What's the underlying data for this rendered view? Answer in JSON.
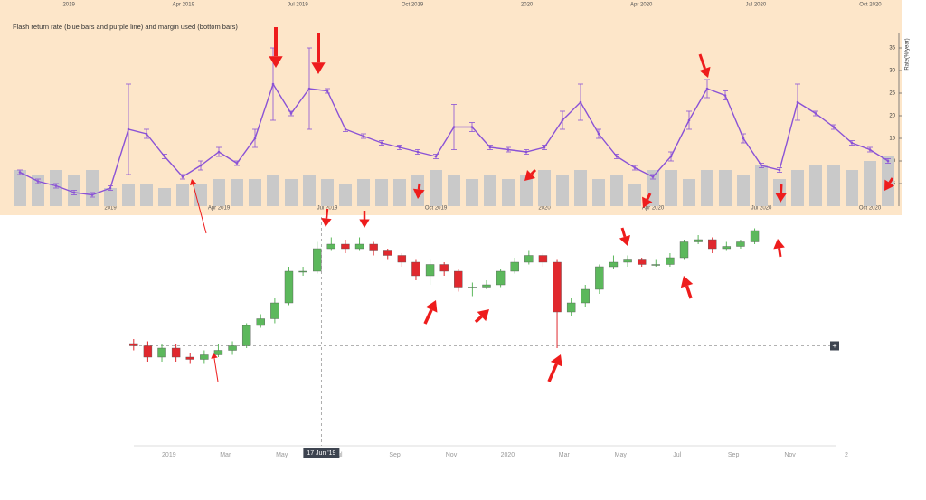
{
  "chart_data": [
    {
      "type": "bar-line",
      "title": "Flash return rate (blue bars and purple line) and margin used (bottom bars)",
      "y_label": "Rate(%/year)",
      "x": [
        -2.5,
        -2,
        -1.5,
        -1,
        -0.5,
        0,
        0.5,
        1,
        1.5,
        2,
        2.5,
        3,
        3.5,
        4,
        4.5,
        5,
        5.5,
        6,
        6.5,
        7,
        7.5,
        8,
        8.5,
        9,
        9.5,
        10,
        10.5,
        11,
        11.5,
        12,
        12.5,
        13,
        13.5,
        14,
        14.5,
        15,
        15.5,
        16,
        16.5,
        17,
        17.5,
        18,
        18.5,
        19,
        19.5,
        20,
        20.5,
        21,
        21.5
      ],
      "bars": {
        "color": "#c9c9c9",
        "values": [
          8,
          7,
          8,
          7,
          8,
          4,
          5,
          5,
          4,
          5,
          5,
          6,
          6,
          6,
          7,
          6,
          7,
          6,
          5,
          6,
          6,
          6,
          7,
          8,
          7,
          6,
          7,
          6,
          7,
          8,
          7,
          8,
          6,
          7,
          5,
          8,
          8,
          6,
          8,
          8,
          7,
          9,
          6,
          8,
          9,
          9,
          8,
          10,
          11
        ]
      },
      "line": {
        "color": "#8a52d6",
        "values": [
          7.5,
          5.5,
          4.5,
          3,
          2.5,
          4,
          17,
          16,
          11,
          6.5,
          9,
          12,
          9.5,
          15,
          27,
          20.5,
          26,
          25.5,
          17,
          15.5,
          14,
          13,
          12,
          11,
          17.5,
          17.5,
          13,
          12.5,
          12,
          13,
          19,
          23,
          16,
          11,
          8.5,
          6.5,
          11,
          19,
          26,
          24.5,
          15,
          9,
          8,
          23,
          20.5,
          17.5,
          14,
          12.5,
          10
        ],
        "errors": [
          0.5,
          0.5,
          0.5,
          0.5,
          0.5,
          0.5,
          10,
          1,
          0.5,
          0.5,
          1,
          1,
          0.5,
          2,
          8,
          0.5,
          9,
          0.5,
          0.5,
          0.5,
          0.5,
          0.5,
          0.5,
          0.5,
          5,
          1,
          0.5,
          0.5,
          0.5,
          0.5,
          2,
          4,
          1,
          0.5,
          0.5,
          0.5,
          1,
          2,
          2,
          1,
          1,
          0.5,
          0.5,
          4,
          0.5,
          0.5,
          0.5,
          0.5,
          0.5
        ]
      },
      "xlim": [
        -2.75,
        21.75
      ],
      "xticks": [
        {
          "value": 0,
          "label": "2019"
        },
        {
          "value": 3,
          "label": "Apr 2019"
        },
        {
          "value": 6,
          "label": "Jul 2019"
        },
        {
          "value": 9,
          "label": "Oct 2019"
        },
        {
          "value": 12,
          "label": "2020"
        },
        {
          "value": 15,
          "label": "Apr 2020"
        },
        {
          "value": 18,
          "label": "Jul 2020"
        },
        {
          "value": 21,
          "label": "Oct 2020"
        }
      ],
      "x2lim": [
        -1.52,
        21.7
      ],
      "x2ticks": [
        {
          "value": 0,
          "label": "2019"
        },
        {
          "value": 3,
          "label": "Apr 2019"
        },
        {
          "value": 6,
          "label": "Jul 2019"
        },
        {
          "value": 9,
          "label": "Oct 2019"
        },
        {
          "value": 12,
          "label": "2020"
        },
        {
          "value": 15,
          "label": "Apr 2020"
        },
        {
          "value": 18,
          "label": "Jul 2020"
        },
        {
          "value": 21,
          "label": "Oct 2020"
        }
      ],
      "ylim": [
        0,
        38
      ],
      "yticks": [
        5,
        10,
        15,
        20,
        25,
        30,
        35
      ],
      "background": "#fde6c9"
    },
    {
      "type": "candlestick",
      "x": [
        -1.25,
        -0.75,
        -0.25,
        0.25,
        0.75,
        1.25,
        1.75,
        2.25,
        2.75,
        3.25,
        3.75,
        4.25,
        4.75,
        5.25,
        5.75,
        6.25,
        6.75,
        7.25,
        7.75,
        8.25,
        8.75,
        9.25,
        9.75,
        10.25,
        10.75,
        11.25,
        11.75,
        12.25,
        12.75,
        13.25,
        13.75,
        14.25,
        14.75,
        15.25,
        15.75,
        16.25,
        16.75,
        17.25,
        17.75,
        18.25,
        18.75,
        19.25,
        19.75,
        20.25,
        20.75
      ],
      "open": [
        44,
        43,
        38,
        42,
        38,
        37,
        39,
        41,
        43,
        52,
        55,
        62,
        76,
        76,
        86,
        88,
        86,
        88,
        85,
        83,
        80,
        74,
        79,
        76,
        69,
        69,
        70,
        76,
        80,
        83,
        80,
        58,
        62,
        68,
        78,
        80,
        81,
        79,
        79,
        82,
        89,
        90,
        86,
        87,
        89
      ],
      "close": [
        43,
        38,
        42,
        38,
        37,
        39,
        41,
        43,
        52,
        55,
        62,
        76,
        76,
        86,
        88,
        86,
        88,
        85,
        83,
        80,
        74,
        79,
        76,
        69,
        69,
        70,
        76,
        80,
        83,
        80,
        58,
        62,
        68,
        78,
        80,
        81,
        79,
        79,
        82,
        89,
        90,
        86,
        87,
        89,
        94
      ],
      "high": [
        46,
        45,
        44,
        44,
        40,
        41,
        44,
        45,
        53,
        57,
        64,
        78,
        78,
        89,
        91,
        90,
        91,
        89,
        86,
        84,
        81,
        81,
        80,
        77,
        71,
        72,
        77,
        82,
        85,
        84,
        81,
        64,
        70,
        79,
        83,
        83,
        82,
        81,
        84,
        90,
        92,
        91,
        89,
        90,
        95
      ],
      "low": [
        41,
        36,
        36,
        36,
        35,
        35,
        38,
        39,
        42,
        51,
        53,
        61,
        74,
        75,
        85,
        84,
        85,
        83,
        81,
        78,
        72,
        70,
        74,
        67,
        65,
        68,
        69,
        75,
        79,
        78,
        42,
        56,
        60,
        66,
        77,
        78,
        78,
        78,
        78,
        81,
        88,
        84,
        85,
        86,
        88
      ],
      "up_color": "#5cb85c",
      "down_color": "#e0282e",
      "xlim": [
        -1.5,
        24
      ],
      "xticks": [
        {
          "value": 0,
          "label": "2019"
        },
        {
          "value": 2,
          "label": "Mar"
        },
        {
          "value": 4,
          "label": "May"
        },
        {
          "value": 6,
          "label": "Jul"
        },
        {
          "value": 8,
          "label": "Sep"
        },
        {
          "value": 10,
          "label": "Nov"
        },
        {
          "value": 12,
          "label": "2020"
        },
        {
          "value": 14,
          "label": "Mar"
        },
        {
          "value": 16,
          "label": "May"
        },
        {
          "value": 18,
          "label": "Jul"
        },
        {
          "value": 20,
          "label": "Sep"
        },
        {
          "value": 22,
          "label": "Nov"
        },
        {
          "value": 24,
          "label": "2"
        }
      ],
      "ylim": [
        0,
        100
      ],
      "crosshair": {
        "x": 5.4,
        "y": 43,
        "label": "17 Jun '19"
      }
    }
  ]
}
